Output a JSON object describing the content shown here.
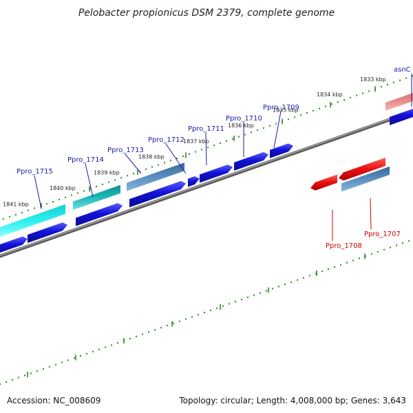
{
  "title": "Pelobacter propionicus DSM 2379, complete genome",
  "footer": {
    "accession": "Accession: NC_008609",
    "summary": "Topology: circular; Length: 4,008,000 bp; Genes: 3,643"
  },
  "colors": {
    "backbone": "#7f7f7f",
    "tick": "#2a8a2a",
    "blue": "#1212d8",
    "steel": "#4a7fb0",
    "teal": "#1fb8b8",
    "cyan": "#2ff0f0",
    "red": "#e81010",
    "pink": "#e88a8a",
    "label_blue": "#1a1aa8",
    "label_red": "#cc0000"
  },
  "scale_labels": [
    "1841 kbp",
    "1840 kbp",
    "1839 kbp",
    "1838 kbp",
    "1837 kbp",
    "1836 kbp",
    "1835 kbp",
    "1834 kbp",
    "1833 kbp"
  ],
  "gene_labels": [
    {
      "text": "Ppro_1715",
      "color": "blue"
    },
    {
      "text": "Ppro_1714",
      "color": "blue"
    },
    {
      "text": "Ppro_1713",
      "color": "blue"
    },
    {
      "text": "Ppro_1712",
      "color": "blue"
    },
    {
      "text": "Ppro_1711",
      "color": "blue"
    },
    {
      "text": "Ppro_1710",
      "color": "blue"
    },
    {
      "text": "Ppro_1709",
      "color": "blue"
    },
    {
      "text": "asnC",
      "color": "blue"
    },
    {
      "text": "Ppro_1708",
      "color": "red"
    },
    {
      "text": "Ppro_1707",
      "color": "red"
    }
  ]
}
